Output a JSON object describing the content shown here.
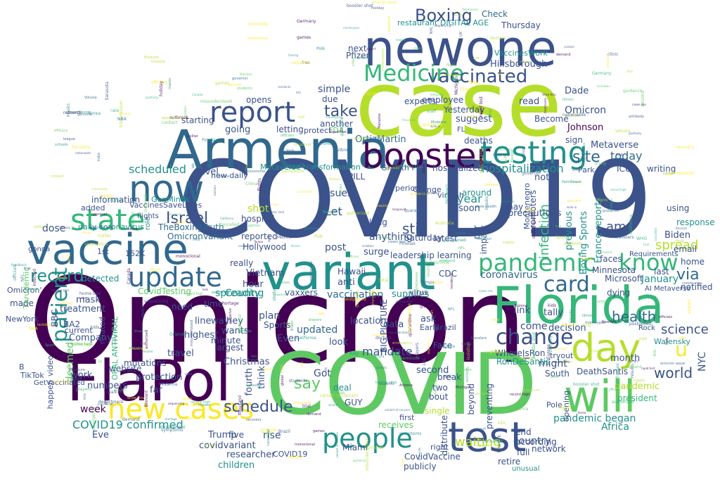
{
  "palette": {
    "dark_purple": "#440154",
    "indigo": "#3b528b",
    "blue": "#31688e",
    "teal": "#21918c",
    "green": "#35b779",
    "light_green": "#5ec962",
    "yellow_green": "#b5de2b",
    "yellow": "#fde725"
  },
  "words": [
    "COVID19",
    "Omicron",
    "case",
    "COVID",
    "Armenia",
    "FlaPol",
    "vaccine",
    "variant",
    "newone",
    "booster",
    "Florida",
    "testing",
    "now",
    "day",
    "will",
    "test",
    "new cases",
    "state",
    "people",
    "report",
    "Medicine",
    "update",
    "pandemic",
    "know",
    "Boxing",
    "vaccinated",
    "card",
    "change",
    "patient",
    "record",
    "Israel",
    "hospitalization",
    "scheduled",
    "science",
    "world",
    "schedule",
    "COVID19 confirmed",
    "spread",
    "amp",
    "infection",
    "health",
    "site",
    "Omicron",
    "today",
    "via",
    "u",
    "take",
    "say",
    "still",
    "waiting",
    "week",
    "Africa",
    "pandemic began",
    "country",
    "Johnson",
    "Metaverse",
    "Check",
    "restaurant DIGITAL AGE",
    "Hillsborough",
    "VaccinesWork",
    "OrtizMartin",
    "GKPath PDI",
    "Metaverse transformation",
    "OmicronVariant",
    "TheBoxingTruth",
    "CovidTesting",
    "mandate",
    "vaccination",
    "coronavirus",
    "hospital",
    "reported",
    "shot",
    "Let",
    "year",
    "Saturday",
    "Thursday",
    "Yesterday",
    "Pfizer",
    "next",
    "due",
    "another",
    "experts",
    "suggest",
    "Become",
    "employee",
    "deaths",
    "hospitalized",
    "level",
    "County",
    "simple",
    "updated",
    "spreading",
    "detected",
    "information",
    "daily coronavirus",
    "added",
    "dose",
    "Hollywood",
    "leadership learning",
    "Hawaii",
    "CDC",
    "Minnesota",
    "January",
    "Biden",
    "response",
    "email",
    "home",
    "notified",
    "Microsoft",
    "dying",
    "tally",
    "decision",
    "link",
    "come",
    "might",
    "month",
    "WhereIsRon",
    "RonDeSantis",
    "DeathSantis",
    "South",
    "network",
    "end",
    "according",
    "pandemic",
    "president",
    "NYC",
    "plan",
    "Sports",
    "Even",
    "look",
    "location",
    "data",
    "ask",
    "GUY",
    "Got",
    "deal",
    "second",
    "two",
    "bout",
    "break",
    "beyond",
    "preventing",
    "distribute",
    "single",
    "first",
    "receives",
    "rise",
    "COVID19",
    "CovidVaccine",
    "publicly",
    "Miami",
    "researcher",
    "children",
    "covidvariant",
    "Trump",
    "five",
    "Eve",
    "protection",
    "travel",
    "highest",
    "line",
    "way",
    "hey",
    "wants",
    "time",
    "minute",
    "largest",
    "treatment",
    "mask",
    "BA2",
    "Company",
    "need",
    "BBC",
    "mutations",
    "website",
    "Christmas",
    "think",
    "fourth",
    "work",
    "numbers",
    "far",
    "happen",
    "video",
    "TikTok",
    "NewYork",
    "made",
    "B",
    "deemed",
    "related",
    "ORAL ANTIVIRAL",
    "GetVaccinated",
    "GenMinds",
    "VaccinesSaveLives",
    "Thrudemic",
    "Vietnam",
    "hour",
    "surge",
    "anti",
    "vaxxers",
    "supplies",
    "virus",
    "BIG PICTURE",
    "post",
    "anything",
    "long",
    "latest",
    "impact",
    "precautions",
    "may",
    "soon",
    "per",
    "around",
    "viral6h",
    "Orange",
    "period",
    "PILL",
    "issues",
    "FDA",
    "protect",
    "letting",
    "going",
    "starting",
    "opens",
    "new daily",
    "1st",
    "152K",
    "role",
    "flights",
    "ICU",
    "writing",
    "Park",
    "note",
    "last",
    "using",
    "sign",
    "previous",
    "Boxing Sports",
    "France reports",
    "Requirements",
    "promoters",
    "Montenegro",
    "Pole",
    "opening",
    "retire",
    "full",
    "unusual",
    "tryout",
    "Dade",
    "read",
    "FL",
    "Walensky",
    "AI Metaverse",
    "Brazil",
    "Early",
    "Face",
    "right",
    "really",
    "faces",
    "Rock",
    "current",
    "Omicron'",
    "gonna",
    "ABC"
  ],
  "tiny_words": [
    "misunderstood",
    "positivity",
    "outbreak",
    "lockdown",
    "quarantine",
    "symptoms",
    "mild",
    "severe",
    "cases rise",
    "weekend",
    "officials",
    "governor",
    "schools",
    "students",
    "testing sites",
    "clinic",
    "nurses",
    "doctors",
    "staff",
    "shortage",
    "masks",
    "guidance",
    "isolation",
    "booster shot",
    "kids",
    "omicron wave",
    "record high",
    "holiday",
    "travelers",
    "airport",
    "flights",
    "cancelled",
    "NFL",
    "NBA",
    "NHL",
    "games",
    "postponed",
    "players",
    "protocols",
    "league",
    "antibody",
    "Moderna",
    "mRNA",
    "efficacy",
    "study",
    "research",
    "trial",
    "approval",
    "emergency",
    "authorized",
    "monoclonal",
    "treatments",
    "supply",
    "demand",
    "state health",
    "department",
    "residents",
    "community",
    "transmission",
    "rate",
    "percent",
    "total",
    "million",
    "thousand",
    "nationwide",
    "global",
    "WHO",
    "Europe",
    "UK",
    "Canada",
    "India",
    "Australia",
    "Germany",
    "Italy",
    "Spain",
    "Japan",
    "China",
    "Korea",
    "Brazil",
    "Mexico",
    "Texas",
    "California",
    "NewYork",
    "Ohio",
    "Georgia",
    "Michigan",
    "Arizona",
    "Illinois",
    "Tampa",
    "Orlando",
    "Jacksonville",
    "Tallahassee",
    "Broward",
    "PalmBeach",
    "Pinellas",
    "Polk",
    "Volusia",
    "Seminole",
    "Lee",
    "Collier",
    "Sarasota",
    "Manatee",
    "Brevard",
    "Osceola",
    "monkeypox",
    "longcovid",
    "recovery",
    "immunity",
    "infected",
    "exposure",
    "contact",
    "tracing",
    "variant of concern",
    "sequencing",
    "genome",
    "lab",
    "results",
    "rapid test",
    "home test",
    "PCR",
    "negative",
    "positive",
    "waiting line",
    "drive thru",
    "appointments",
    "walk-in",
    "free",
    "kits"
  ]
}
